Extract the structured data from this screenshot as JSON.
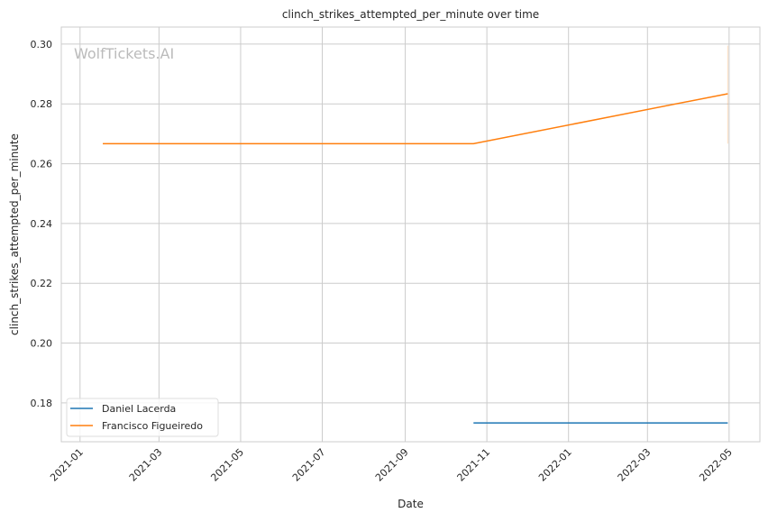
{
  "chart_data": {
    "type": "line",
    "title": "clinch_strikes_attempted_per_minute over time",
    "xlabel": "Date",
    "ylabel": "clinch_strikes_attempted_per_minute",
    "watermark": "WolfTickets.AI",
    "xlim": [
      "2020-12-18",
      "2022-05-24"
    ],
    "ylim": [
      0.167,
      0.3057
    ],
    "xticks": [
      "2021-01",
      "2021-03",
      "2021-05",
      "2021-07",
      "2021-09",
      "2021-11",
      "2022-01",
      "2022-03",
      "2022-05"
    ],
    "yticks": [
      0.18,
      0.2,
      0.22,
      0.24,
      0.26,
      0.28,
      0.3
    ],
    "grid": true,
    "legend_placement": "lower-left",
    "series": [
      {
        "name": "Daniel Lacerda",
        "color": "#1f77b4",
        "x": [
          "2021-10-22",
          "2022-04-30"
        ],
        "y": [
          0.1733,
          0.1733
        ]
      },
      {
        "name": "Francisco Figueiredo",
        "color": "#ff7f0e",
        "x": [
          "2021-01-18",
          "2021-10-22",
          "2022-04-30"
        ],
        "y": [
          0.2667,
          0.2667,
          0.2834
        ],
        "band": {
          "x": "2022-04-30",
          "low": 0.2667,
          "high": 0.2995
        }
      }
    ]
  }
}
